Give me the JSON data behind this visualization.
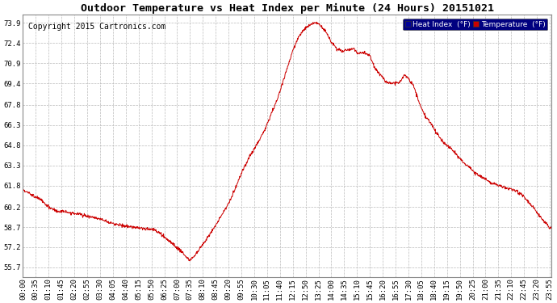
{
  "title": "Outdoor Temperature vs Heat Index per Minute (24 Hours) 20151021",
  "copyright": "Copyright 2015 Cartronics.com",
  "ylabel_ticks": [
    55.7,
    57.2,
    58.7,
    60.2,
    61.8,
    63.3,
    64.8,
    66.3,
    67.8,
    69.4,
    70.9,
    72.4,
    73.9
  ],
  "ylim": [
    55.0,
    74.5
  ],
  "line_color": "#cc0000",
  "background_color": "#ffffff",
  "grid_color": "#bbbbbb",
  "legend_heat_index_bg": "#000099",
  "legend_temp_bg": "#cc0000",
  "legend_text_color": "#ffffff",
  "title_fontsize": 9.5,
  "copyright_fontsize": 7,
  "tick_fontsize": 6.5,
  "key_times": [
    0.0,
    0.3,
    0.75,
    1.17,
    1.5,
    2.0,
    2.5,
    3.0,
    3.5,
    4.0,
    4.25,
    4.5,
    5.0,
    5.5,
    6.0,
    6.25,
    6.5,
    6.75,
    7.0,
    7.25,
    7.58,
    7.75,
    8.0,
    8.25,
    8.5,
    9.0,
    9.25,
    9.5,
    9.75,
    10.0,
    10.25,
    10.5,
    10.75,
    11.0,
    11.25,
    11.5,
    11.75,
    12.0,
    12.25,
    12.5,
    12.75,
    13.0,
    13.25,
    13.42,
    13.58,
    13.75,
    14.0,
    14.25,
    14.5,
    14.75,
    15.0,
    15.25,
    15.5,
    15.75,
    16.0,
    16.25,
    16.5,
    16.75,
    17.0,
    17.17,
    17.33,
    17.5,
    17.75,
    18.0,
    18.25,
    18.5,
    18.75,
    19.0,
    19.25,
    19.5,
    19.75,
    20.0,
    20.25,
    20.5,
    20.75,
    21.0,
    21.25,
    21.5,
    21.75,
    22.0,
    22.25,
    22.5,
    22.75,
    23.0,
    23.25,
    23.5,
    23.75,
    23.92
  ],
  "key_values": [
    61.5,
    61.2,
    60.8,
    60.2,
    59.9,
    59.8,
    59.7,
    59.5,
    59.3,
    59.0,
    58.9,
    58.8,
    58.7,
    58.6,
    58.5,
    58.2,
    57.9,
    57.5,
    57.2,
    56.8,
    56.2,
    56.5,
    57.0,
    57.6,
    58.2,
    59.5,
    60.2,
    61.0,
    62.0,
    63.0,
    63.8,
    64.5,
    65.2,
    66.0,
    67.0,
    68.0,
    69.2,
    70.5,
    71.8,
    72.8,
    73.4,
    73.7,
    73.9,
    73.85,
    73.6,
    73.3,
    72.5,
    72.0,
    71.8,
    71.9,
    72.0,
    71.6,
    71.7,
    71.5,
    70.5,
    70.0,
    69.5,
    69.4,
    69.4,
    69.6,
    70.0,
    69.8,
    69.2,
    68.0,
    67.0,
    66.5,
    65.8,
    65.2,
    64.8,
    64.5,
    64.0,
    63.5,
    63.2,
    62.8,
    62.5,
    62.3,
    62.0,
    61.9,
    61.7,
    61.6,
    61.5,
    61.3,
    61.0,
    60.5,
    60.0,
    59.5,
    59.0,
    58.7
  ]
}
